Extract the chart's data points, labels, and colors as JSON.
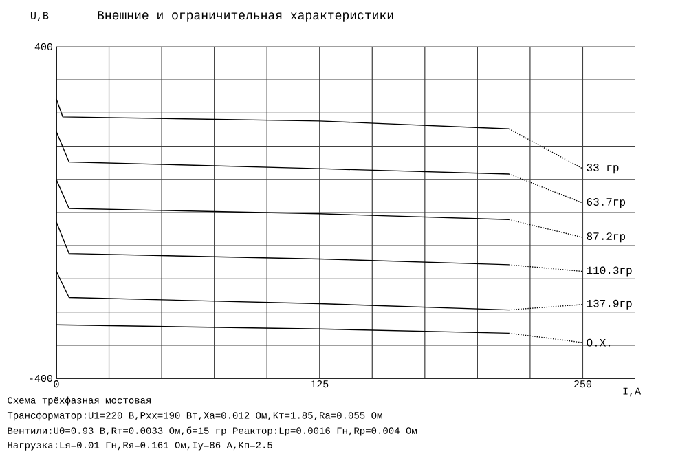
{
  "chart_data": {
    "type": "line",
    "title": "Внешние и ограничительная характеристики",
    "xlabel": "I,A",
    "ylabel": "U,B",
    "xlim": [
      0,
      275
    ],
    "ylim": [
      -400,
      400
    ],
    "xticks": [
      0,
      {
        "value": 25,
        "label": null
      },
      {
        "value": 50,
        "label": null
      },
      {
        "value": 75,
        "label": null
      },
      {
        "value": 100,
        "label": null
      },
      125,
      {
        "value": 150,
        "label": null
      },
      {
        "value": 175,
        "label": null
      },
      {
        "value": 200,
        "label": null
      },
      {
        "value": 225,
        "label": null
      },
      250
    ],
    "yticks": [
      -400,
      {
        "value": -320,
        "label": null
      },
      {
        "value": -240,
        "label": null
      },
      {
        "value": -160,
        "label": null
      },
      {
        "value": -80,
        "label": null
      },
      {
        "value": 0,
        "label": null
      },
      {
        "value": 80,
        "label": null
      },
      {
        "value": 160,
        "label": null
      },
      {
        "value": 240,
        "label": null
      },
      {
        "value": 320,
        "label": null
      },
      400
    ],
    "grid": true,
    "series": [
      {
        "color": "#000000",
        "line_style": "solid",
        "x": [
          0,
          3,
          125,
          215
        ],
        "values": [
          274,
          231,
          221,
          202
        ]
      },
      {
        "name": "33  гр",
        "color": "#000000",
        "line_style": "dotted",
        "x": [
          215,
          250
        ],
        "values": [
          202,
          106
        ]
      },
      {
        "color": "#000000",
        "line_style": "solid",
        "x": [
          0,
          6,
          125,
          215
        ],
        "values": [
          195,
          122,
          106,
          93
        ]
      },
      {
        "name": "63.7гр",
        "color": "#000000",
        "line_style": "dotted",
        "x": [
          215,
          250
        ],
        "values": [
          93,
          23
        ]
      },
      {
        "color": "#000000",
        "line_style": "solid",
        "x": [
          0,
          6,
          125,
          215
        ],
        "values": [
          79,
          10,
          -3,
          -17
        ]
      },
      {
        "name": "87.2гр",
        "color": "#000000",
        "line_style": "dotted",
        "x": [
          215,
          250
        ],
        "values": [
          -17,
          -60
        ]
      },
      {
        "color": "#000000",
        "line_style": "solid",
        "x": [
          0,
          6,
          125,
          215
        ],
        "values": [
          -23,
          -99,
          -112,
          -126
        ]
      },
      {
        "name": "110.3гр",
        "color": "#000000",
        "line_style": "dotted",
        "x": [
          215,
          250
        ],
        "values": [
          -126,
          -142
        ]
      },
      {
        "color": "#000000",
        "line_style": "solid",
        "x": [
          0,
          6,
          125,
          215
        ],
        "values": [
          -142,
          -205,
          -220,
          -235
        ]
      },
      {
        "name": "137.9гр",
        "color": "#000000",
        "line_style": "dotted",
        "x": [
          215,
          250
        ],
        "values": [
          -235,
          -222
        ]
      },
      {
        "color": "#000000",
        "line_style": "solid",
        "x": [
          0,
          125,
          215
        ],
        "values": [
          -271,
          -281,
          -291
        ]
      },
      {
        "name": "О.Х.",
        "color": "#000000",
        "line_style": "dotted",
        "x": [
          215,
          250
        ],
        "values": [
          -291,
          -314
        ]
      }
    ],
    "annotations": [
      "Схема трёхфазная мостовая",
      "Трансформатор:U1=220 В,Pхх=190 Вт,Xa=0.012 Ом,Kт=1.85,Ra=0.055 Ом",
      "Вентили:U0=0.93 В,Rт=0.0033 Ом,б=15 гр     Реактор:Lр=0.0016 Гн,Rр=0.004 Ом",
      "Нагрузка:Lя=0.01 Гн,Rя=0.161 Ом,Iу=86 А,Kп=2.5"
    ]
  }
}
